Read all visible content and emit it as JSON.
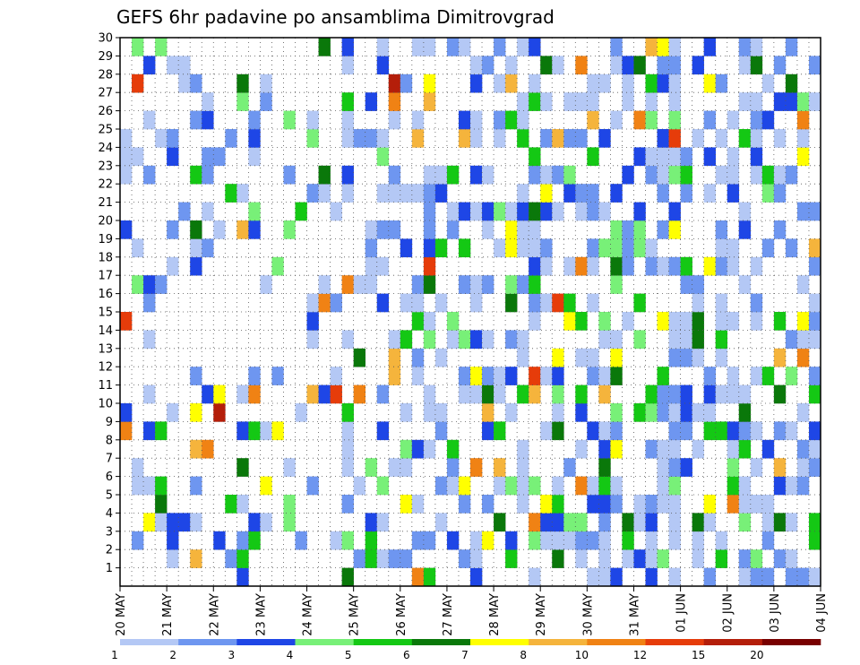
{
  "chart_data": {
    "type": "heatmap",
    "title": "GEFS 6hr padavine po ansamblima Dimitrovgrad",
    "y_ticks": [
      "1",
      "2",
      "3",
      "4",
      "5",
      "6",
      "7",
      "8",
      "9",
      "10",
      "11",
      "12",
      "13",
      "14",
      "15",
      "16",
      "17",
      "18",
      "19",
      "20",
      "21",
      "22",
      "23",
      "24",
      "25",
      "26",
      "27",
      "28",
      "29",
      "30"
    ],
    "x_date_labels": [
      "20 MAY",
      "21 MAY",
      "22 MAY",
      "23 MAY",
      "24 MAY",
      "25 MAY",
      "26 MAY",
      "27 MAY",
      "28 MAY",
      "29 MAY",
      "30 MAY",
      "31 MAY",
      "01 JUN",
      "02 JUN",
      "03 JUN",
      "04 JUN"
    ],
    "steps_per_day": 4,
    "n_members": 30,
    "legend_levels": [
      "1",
      "2",
      "3",
      "4",
      "5",
      "6",
      "7",
      "8",
      "10",
      "12",
      "15",
      "20"
    ],
    "legend_colors": [
      "#b4c8f5",
      "#6e96f0",
      "#1e46e6",
      "#78f078",
      "#14c814",
      "#0a780a",
      "#ffff00",
      "#f5b43c",
      "#f08214",
      "#e63c0a",
      "#b41e0a",
      "#780000"
    ],
    "grid": true,
    "levels_map": {
      "1": "M3|Q4|Y1|a1|e3|n3|o1|p1|q4|r2|v1|3|t4|_2|c2|d2|i4",
      "2": "K1|V6|d2|j2|m4|9|!2",
      "4": "C2|D1|R3|S2|l1|u3|w2|x1|y3|j4|-1",
      "5": "A2|E3|F1|R4|Z1|d3|f2|2|i2|k1|_3",
      "6": "E1|N2|O1|X1|Y2|x1|*3|@1",
      "9": "B5|E1|L1|R1|b3|f1|@3",
      "12": "D4|P1|W4|e7|h5|o4"
    },
    "note": "unused"
  }
}
